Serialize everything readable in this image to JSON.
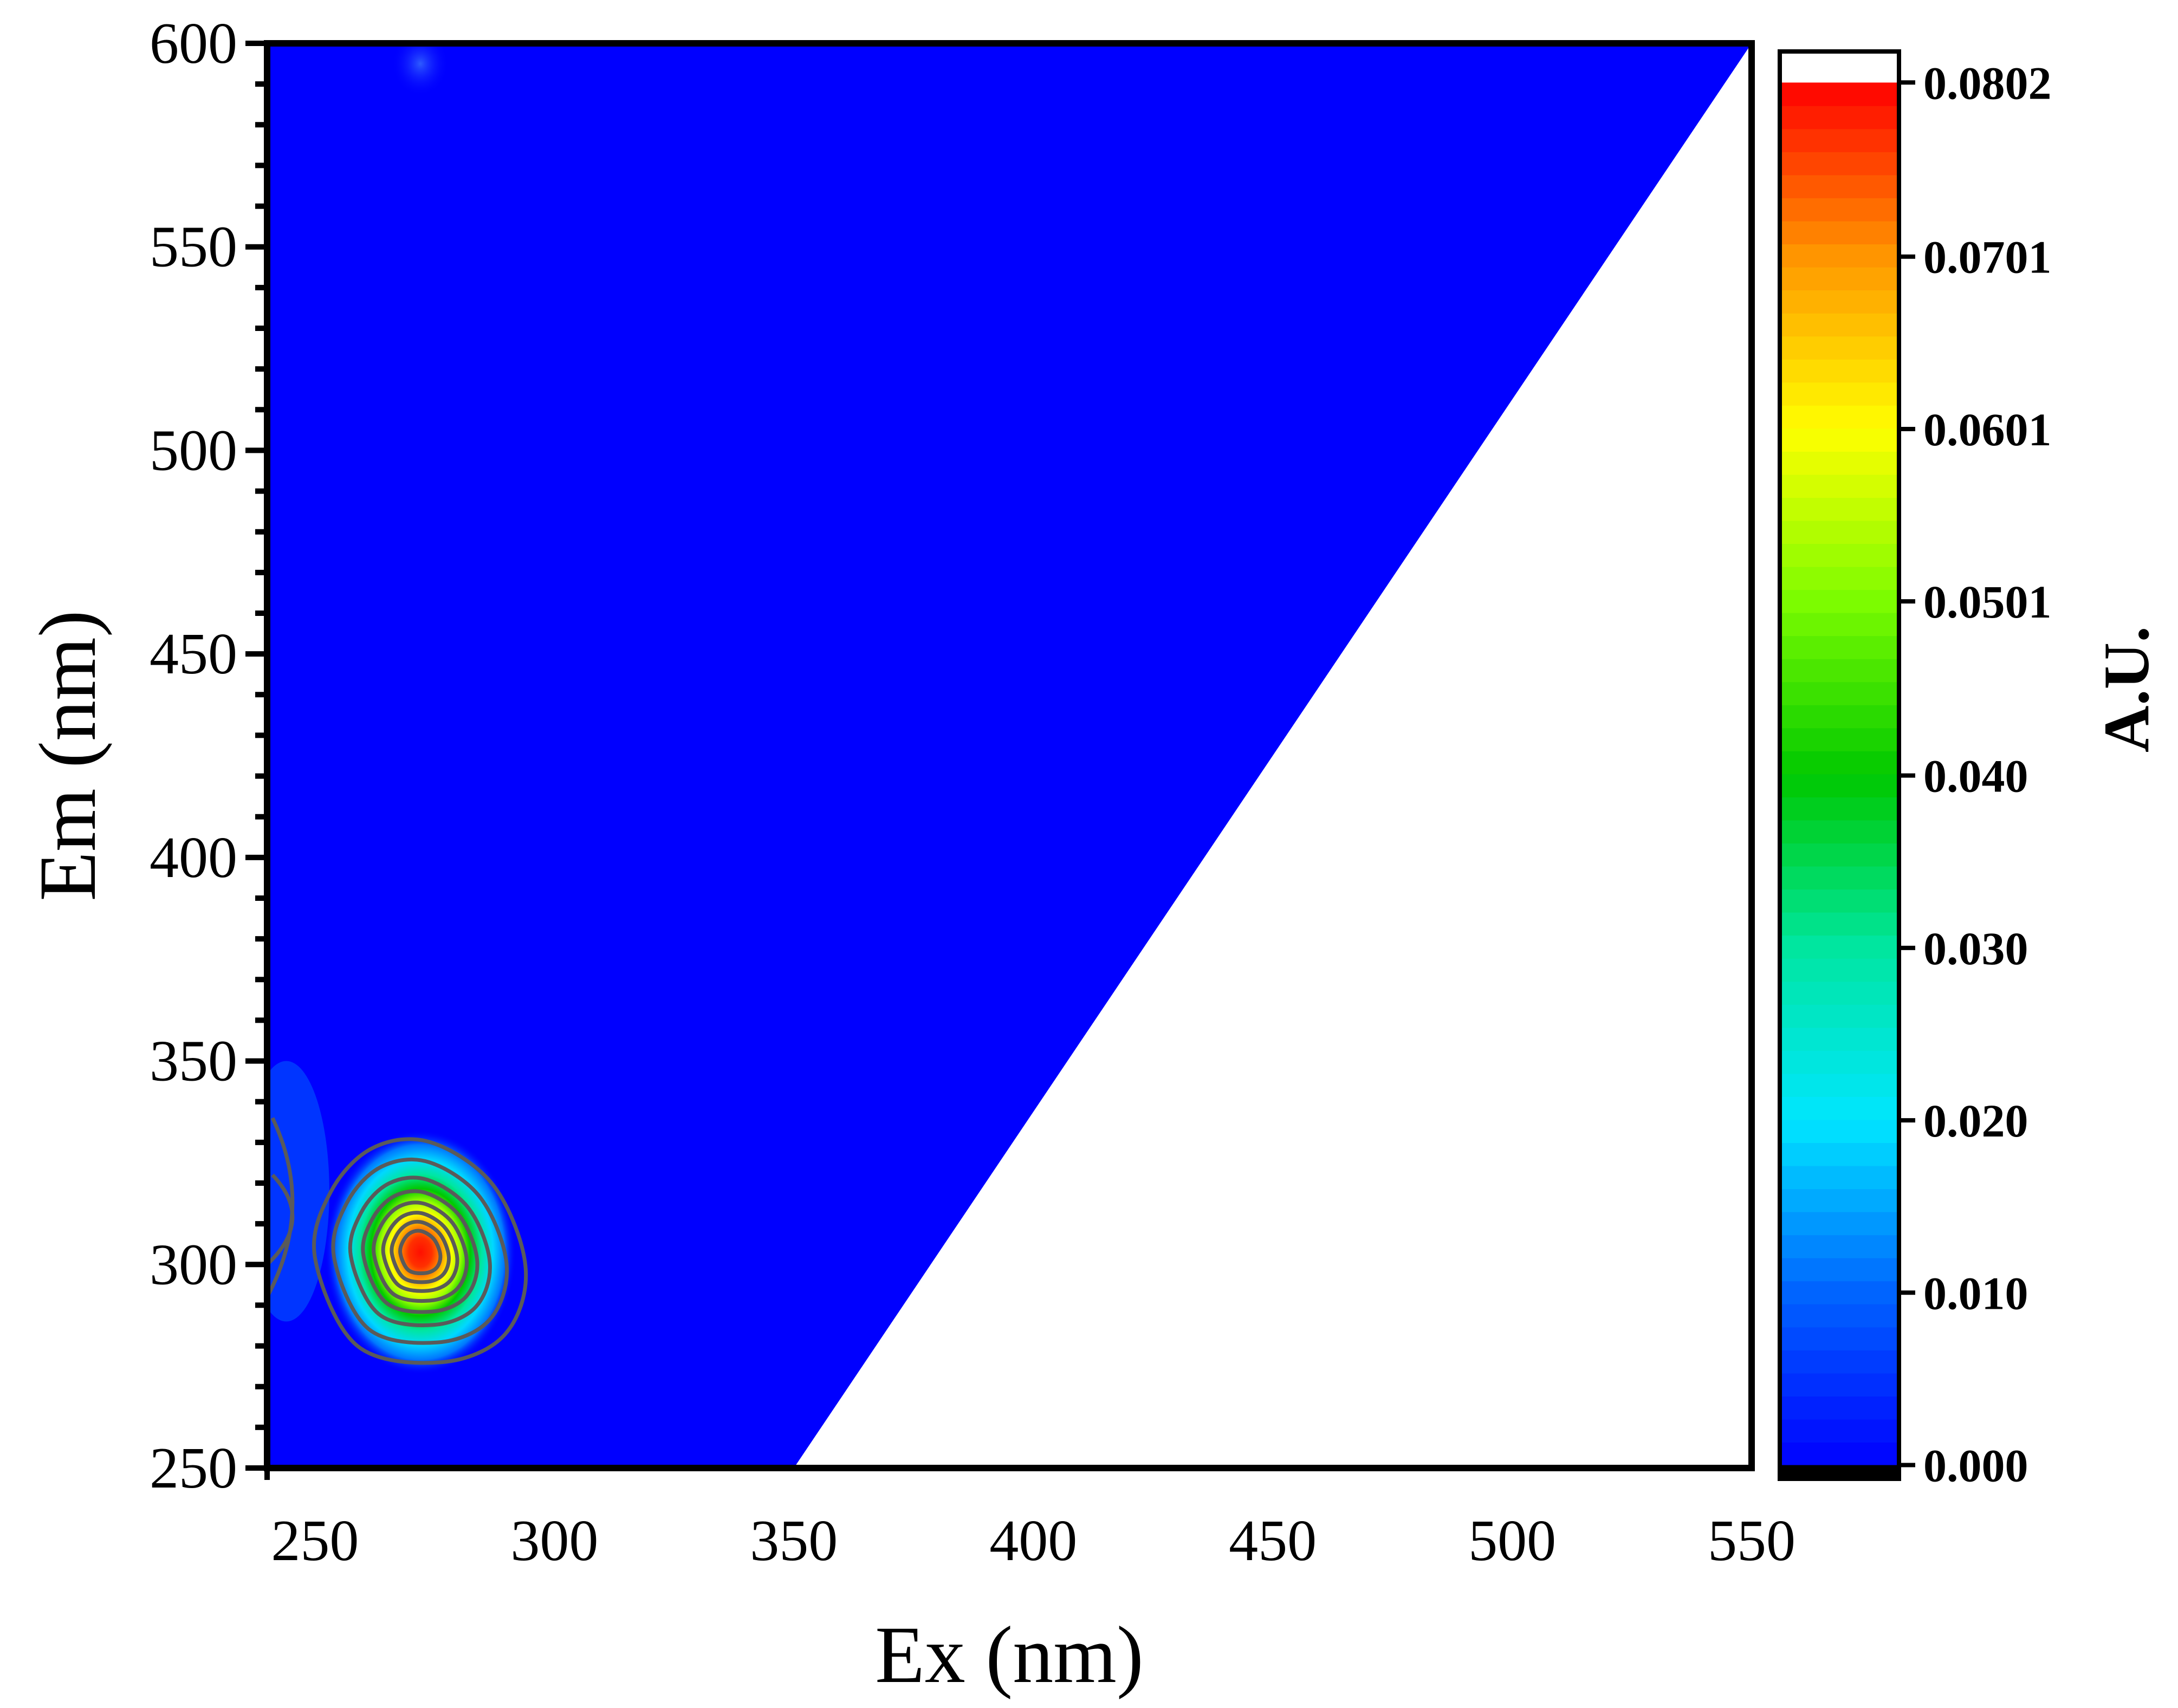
{
  "chart_data": {
    "type": "heatmap",
    "subtype": "excitation-emission contour map",
    "xlabel": "Ex (nm)",
    "ylabel": "Em (nm)",
    "xlim": [
      240,
      550
    ],
    "ylim": [
      250,
      600
    ],
    "x_ticks": [
      250,
      300,
      350,
      400,
      450,
      500,
      550
    ],
    "y_ticks": [
      250,
      300,
      350,
      400,
      450,
      500,
      550,
      600
    ],
    "background_color": "#0000FF",
    "masked_region": "below the Em = Ex line (no data, white)",
    "masked_line": [
      [
        350,
        250
      ],
      [
        550,
        600
      ]
    ],
    "peaks": [
      {
        "ex": 272,
        "em": 303,
        "intensity": 0.078,
        "note": "main fluorescence peak"
      },
      {
        "ex": 272,
        "em": 595,
        "intensity": 0.004,
        "note": "faint spot near top edge"
      }
    ],
    "contour_levels": [
      0.004,
      0.01,
      0.02,
      0.03,
      0.04,
      0.05,
      0.06,
      0.0701
    ],
    "colorbar": {
      "title": "A.U.",
      "min": 0.0,
      "max": 0.0802,
      "tick_values": [
        0.0,
        0.01,
        0.02,
        0.03,
        0.04,
        0.0501,
        0.0601,
        0.0701,
        0.0802
      ],
      "tick_labels": [
        "0.000",
        "0.010",
        "0.020",
        "0.030",
        "0.040",
        "0.0501",
        "0.0601",
        "0.0701",
        "0.0802"
      ],
      "colors": [
        "#000000",
        "#0000FF",
        "#0078FF",
        "#00E6FF",
        "#00FF80",
        "#00C800",
        "#96FF00",
        "#FFFF00",
        "#FF9600",
        "#FF0000",
        "#FFFFFF"
      ]
    }
  }
}
